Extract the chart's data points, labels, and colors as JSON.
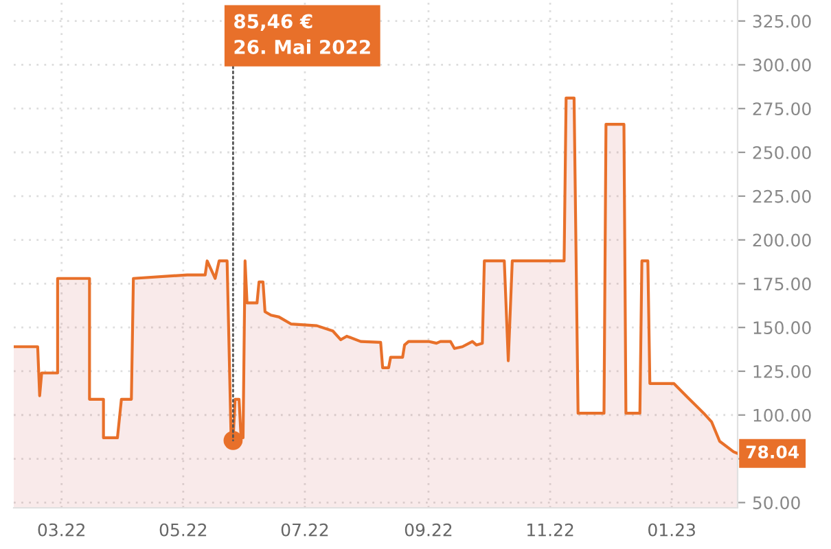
{
  "chart_data": {
    "type": "area",
    "x": [
      "2022-02-05",
      "2022-02-17",
      "2022-02-18",
      "2022-02-19",
      "2022-02-27",
      "2022-02-27",
      "2022-03-15",
      "2022-03-15",
      "2022-03-22",
      "2022-03-22",
      "2022-03-29",
      "2022-03-31",
      "2022-04-05",
      "2022-04-06",
      "2022-05-03",
      "2022-05-12",
      "2022-05-13",
      "2022-05-17",
      "2022-05-19",
      "2022-05-23",
      "2022-05-25",
      "2022-05-26",
      "2022-05-27",
      "2022-05-29",
      "2022-05-30",
      "2022-05-31",
      "2022-06-01",
      "2022-06-02",
      "2022-06-07",
      "2022-06-08",
      "2022-06-10",
      "2022-06-11",
      "2022-06-14",
      "2022-06-18",
      "2022-06-24",
      "2022-07-07",
      "2022-07-15",
      "2022-07-19",
      "2022-07-22",
      "2022-07-29",
      "2022-08-08",
      "2022-08-09",
      "2022-08-12",
      "2022-08-13",
      "2022-08-19",
      "2022-08-20",
      "2022-08-22",
      "2022-09-01",
      "2022-09-05",
      "2022-09-07",
      "2022-09-12",
      "2022-09-14",
      "2022-09-18",
      "2022-09-23",
      "2022-09-25",
      "2022-09-28",
      "2022-09-29",
      "2022-10-09",
      "2022-10-11",
      "2022-10-13",
      "2022-11-08",
      "2022-11-09",
      "2022-11-13",
      "2022-11-15",
      "2022-11-28",
      "2022-11-29",
      "2022-12-08",
      "2022-12-09",
      "2022-12-16",
      "2022-12-17",
      "2022-12-20",
      "2022-12-21",
      "2023-01-02",
      "2023-01-09",
      "2023-01-17",
      "2023-01-21",
      "2023-01-25",
      "2023-02-01",
      "2023-02-03"
    ],
    "series": [
      {
        "color": "#e8702a",
        "values": [
          139,
          139,
          111,
          124,
          124,
          178,
          178,
          109,
          109,
          87,
          87,
          109,
          109,
          178,
          180,
          180,
          188,
          178,
          188,
          188,
          87,
          85.46,
          109,
          109,
          87,
          87,
          188,
          164,
          164,
          176,
          176,
          159,
          157,
          156,
          152,
          151,
          148,
          143,
          145,
          142,
          141.5,
          127,
          127,
          133,
          133,
          140,
          142,
          142,
          141,
          142,
          142,
          138,
          139,
          142,
          140,
          141,
          188,
          188,
          131,
          188,
          188,
          281,
          281,
          101,
          101,
          266,
          266,
          101,
          101,
          188,
          188,
          118,
          118,
          110,
          101,
          96,
          85,
          79,
          78.04
        ]
      }
    ],
    "xlim": [
      "2022-02-05",
      "2023-02-03"
    ],
    "xticks": [
      {
        "value": "2022-03-01",
        "label": "03.22"
      },
      {
        "value": "2022-05-01",
        "label": "05.22"
      },
      {
        "value": "2022-07-01",
        "label": "07.22"
      },
      {
        "value": "2022-09-01",
        "label": "09.22"
      },
      {
        "value": "2022-11-01",
        "label": "11.22"
      },
      {
        "value": "2023-01-01",
        "label": "01.23"
      }
    ],
    "ylim": [
      47,
      337
    ],
    "yticks": [
      {
        "value": 50,
        "label": "50.00"
      },
      {
        "value": 75,
        "label": null
      },
      {
        "value": 100,
        "label": "100.00"
      },
      {
        "value": 125,
        "label": "125.00"
      },
      {
        "value": 150,
        "label": "150.00"
      },
      {
        "value": 175,
        "label": "175.00"
      },
      {
        "value": 200,
        "label": "200.00"
      },
      {
        "value": 225,
        "label": "225.00"
      },
      {
        "value": 250,
        "label": "250.00"
      },
      {
        "value": 275,
        "label": "275.00"
      },
      {
        "value": 300,
        "label": "300.00"
      },
      {
        "value": 325,
        "label": "325.00"
      }
    ],
    "grid": true,
    "annotations": [
      {
        "text": "85,46 €\n26. Mai 2022",
        "x": "2022-05-26",
        "y": 85.46
      },
      {
        "text": "78.04",
        "x": "2023-02-03",
        "y": 78.04
      }
    ]
  }
}
